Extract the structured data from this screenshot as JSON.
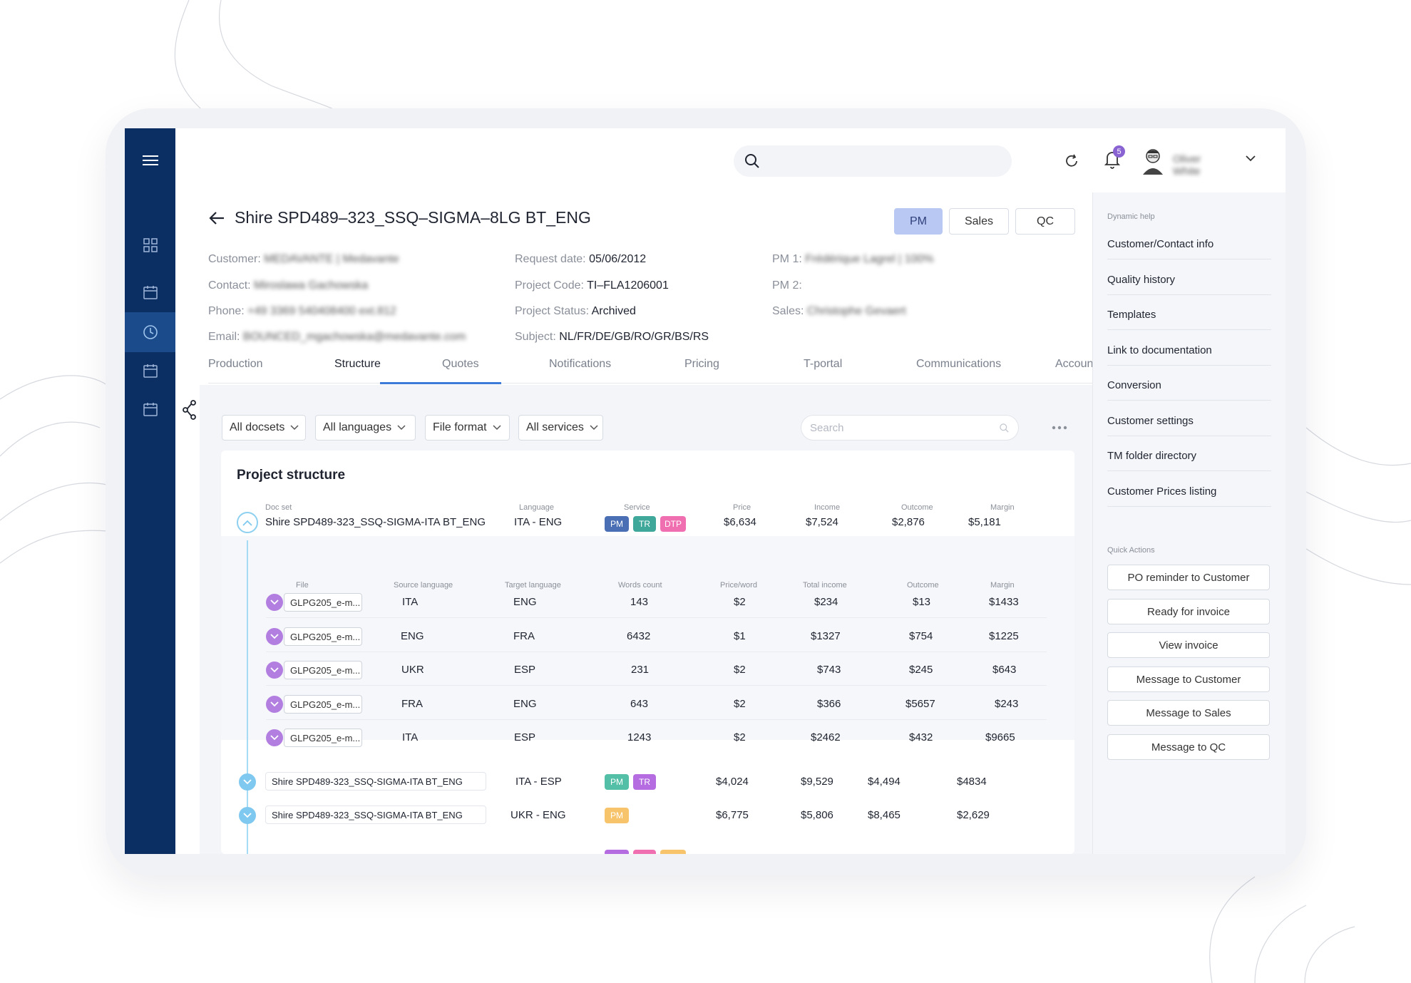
{
  "search": {
    "placeholder": ""
  },
  "header": {
    "notifications_count": "5",
    "user_name": "Oliver White"
  },
  "project": {
    "title": "Shire SPD489–323_SSQ–SIGMA–8LG BT_ENG",
    "roles": [
      "PM",
      "Sales",
      "QC"
    ],
    "col1": [
      {
        "label": "Customer:",
        "value": "MEDAVANTE | Medavante"
      },
      {
        "label": "Contact:",
        "value": "Miroslawa Gachowska"
      },
      {
        "label": "Phone:",
        "value": "+49 3369 540408400 ext.812"
      },
      {
        "label": "Email:",
        "value": "BOUNCED_mgachowska@medavante.com"
      }
    ],
    "col2": [
      {
        "label": "Request date:",
        "value": "05/06/2012"
      },
      {
        "label": "Project Code:",
        "value": "TI–FLA1206001"
      },
      {
        "label": "Project Status:",
        "value": "Archived"
      },
      {
        "label": "Subject:",
        "value": "NL/FR/DE/GB/RO/GR/BS/RS"
      }
    ],
    "col3": [
      {
        "label": "PM 1:",
        "value": "Frédérique Lagrel | 100%"
      },
      {
        "label": "PM 2:",
        "value": ""
      },
      {
        "label": "Sales:",
        "value": "Christophe Gevaert"
      }
    ]
  },
  "tabs": [
    "Production",
    "Structure",
    "Quotes",
    "Notifications",
    "Pricing",
    "T-portal",
    "Communications",
    "Accoun"
  ],
  "filters": {
    "docsets": "All docsets",
    "languages": "All languages",
    "file_format": "File format",
    "services": "All services",
    "search_placeholder": "Search"
  },
  "structure": {
    "title": "Project structure",
    "headers": [
      "Doc set",
      "Language",
      "Service",
      "Price",
      "Income",
      "Outcome",
      "Margin"
    ],
    "main_row": {
      "doc": "Shire SPD489-323_SSQ-SIGMA-ITA BT_ENG",
      "language": "ITA - ENG",
      "services": [
        "PM",
        "TR",
        "DTP"
      ],
      "price": "$6,634",
      "income": "$7,524",
      "outcome": "$2,876",
      "margin": "$5,181"
    },
    "sub_headers": [
      "File",
      "Source language",
      "Target language",
      "Words count",
      "Price/word",
      "Total income",
      "Outcome",
      "Margin"
    ],
    "files": [
      {
        "file": "GLPG205_e-m...",
        "src": "ITA",
        "tgt": "ENG",
        "words": "143",
        "ppw": "$2",
        "income": "$234",
        "outcome": "$13",
        "margin": "$1433"
      },
      {
        "file": "GLPG205_e-m...",
        "src": "ENG",
        "tgt": "FRA",
        "words": "6432",
        "ppw": "$1",
        "income": "$1327",
        "outcome": "$754",
        "margin": "$1225"
      },
      {
        "file": "GLPG205_e-m...",
        "src": "UKR",
        "tgt": "ESP",
        "words": "231",
        "ppw": "$2",
        "income": "$743",
        "outcome": "$245",
        "margin": "$643"
      },
      {
        "file": "GLPG205_e-m...",
        "src": "FRA",
        "tgt": "ENG",
        "words": "643",
        "ppw": "$2",
        "income": "$366",
        "outcome": "$5657",
        "margin": "$243"
      },
      {
        "file": "GLPG205_e-m...",
        "src": "ITA",
        "tgt": "ESP",
        "words": "1243",
        "ppw": "$2",
        "income": "$2462",
        "outcome": "$432",
        "margin": "$9665"
      }
    ],
    "other_rows": [
      {
        "doc": "Shire SPD489-323_SSQ-SIGMA-ITA BT_ENG",
        "language": "ITA - ESP",
        "services": [
          "PM",
          "TR"
        ],
        "price": "$4,024",
        "income": "$9,529",
        "outcome": "$4,494",
        "margin": "$4834"
      },
      {
        "doc": "Shire SPD489-323_SSQ-SIGMA-ITA BT_ENG",
        "language": "UKR - ENG",
        "services": [
          "PM"
        ],
        "price": "$6,775",
        "income": "$5,806",
        "outcome": "$8,465",
        "margin": "$2,629"
      }
    ]
  },
  "colors": {
    "nav_bg": "#0b2e63",
    "accent": "#3c7bd8",
    "pm_pill": "#4a6fb5",
    "tr_pill": "#3fa89a",
    "dtp_pill": "#ef6fb1",
    "tr_purple": "#b46ce0",
    "pm_green": "#52bfa6",
    "pm_orange": "#f7c46c"
  },
  "right_panel": {
    "dynamic_help_label": "Dynamic help",
    "links": [
      "Customer/Contact info",
      "Quality history",
      "Templates",
      "Link to documentation",
      "Conversion",
      "Customer settings",
      "TM folder directory",
      "Customer Prices listing"
    ],
    "quick_actions_label": "Quick Actions",
    "actions": [
      "PO reminder to Customer",
      "Ready for invoice",
      "View invoice",
      "Message to Customer",
      "Message to Sales",
      "Message to QC"
    ]
  }
}
